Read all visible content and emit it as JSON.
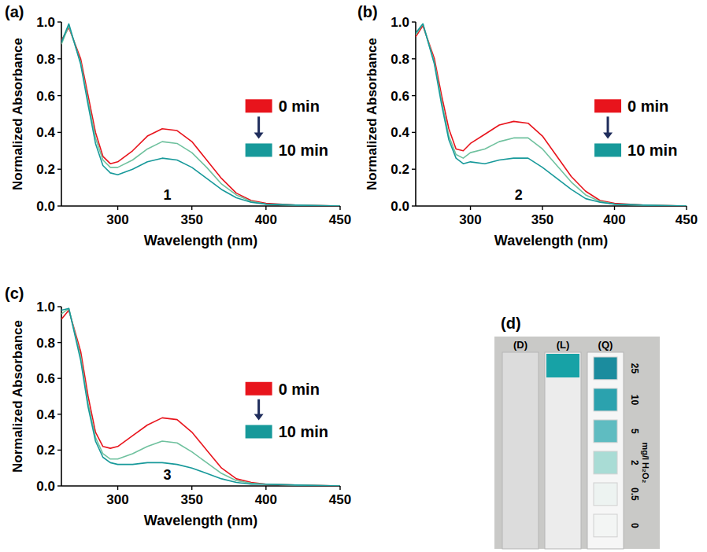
{
  "chart_data": [
    {
      "type": "line",
      "panel": "(a)",
      "annotation": "1",
      "x_label": "Wavelength (nm)",
      "y_label": "Normalized Absorbance",
      "xlim": [
        262,
        450
      ],
      "xticks": [
        300,
        350,
        400,
        450
      ],
      "ylim": [
        0,
        1.0
      ],
      "yticks": [
        {
          "value": 0,
          "label": "0.0"
        },
        {
          "value": 0.2,
          "label": "0.2"
        },
        {
          "value": 0.4,
          "label": "0.4"
        },
        {
          "value": 0.6,
          "label": "0.6"
        },
        {
          "value": 0.8,
          "label": "0.8"
        },
        {
          "value": 1.0,
          "label": "1.0"
        }
      ],
      "grid": false,
      "legend": "right",
      "x": [
        262,
        267,
        275,
        280,
        285,
        290,
        295,
        300,
        310,
        320,
        330,
        340,
        350,
        360,
        370,
        380,
        390,
        400,
        420,
        450
      ],
      "series": [
        {
          "name": "0 min",
          "color": "#e8141c",
          "values": [
            0.9,
            0.97,
            0.8,
            0.6,
            0.4,
            0.27,
            0.23,
            0.24,
            0.3,
            0.38,
            0.42,
            0.41,
            0.35,
            0.25,
            0.15,
            0.07,
            0.03,
            0.015,
            0.005,
            0
          ]
        },
        {
          "color": "#6fc19e",
          "values": [
            0.88,
            0.98,
            0.78,
            0.57,
            0.37,
            0.25,
            0.21,
            0.21,
            0.25,
            0.31,
            0.35,
            0.34,
            0.29,
            0.21,
            0.12,
            0.06,
            0.025,
            0.01,
            0.005,
            0
          ]
        },
        {
          "name": "10 min",
          "color": "#17999a",
          "values": [
            0.89,
            0.99,
            0.77,
            0.55,
            0.34,
            0.22,
            0.18,
            0.17,
            0.2,
            0.24,
            0.26,
            0.25,
            0.21,
            0.15,
            0.09,
            0.045,
            0.02,
            0.01,
            0.005,
            0
          ]
        }
      ]
    },
    {
      "type": "line",
      "panel": "(b)",
      "annotation": "2",
      "x_label": "Wavelength (nm)",
      "y_label": "Normalized Absorbance",
      "xlim": [
        262,
        450
      ],
      "xticks": [
        300,
        350,
        400,
        450
      ],
      "ylim": [
        0,
        1.0
      ],
      "yticks": [
        {
          "value": 0,
          "label": "0.0"
        },
        {
          "value": 0.2,
          "label": "0.2"
        },
        {
          "value": 0.4,
          "label": "0.4"
        },
        {
          "value": 0.6,
          "label": "0.6"
        },
        {
          "value": 0.8,
          "label": "0.8"
        },
        {
          "value": 1.0,
          "label": "1.0"
        }
      ],
      "grid": false,
      "legend": "right",
      "x": [
        262,
        267,
        275,
        280,
        285,
        290,
        295,
        300,
        310,
        320,
        330,
        340,
        350,
        360,
        370,
        380,
        390,
        400,
        420,
        450
      ],
      "series": [
        {
          "name": "0 min",
          "color": "#e8141c",
          "values": [
            0.92,
            0.98,
            0.8,
            0.6,
            0.42,
            0.31,
            0.3,
            0.34,
            0.39,
            0.44,
            0.46,
            0.45,
            0.38,
            0.27,
            0.16,
            0.08,
            0.03,
            0.015,
            0.005,
            0
          ]
        },
        {
          "color": "#6fc19e",
          "values": [
            0.93,
            0.99,
            0.78,
            0.57,
            0.38,
            0.28,
            0.26,
            0.29,
            0.31,
            0.35,
            0.37,
            0.37,
            0.31,
            0.22,
            0.13,
            0.06,
            0.025,
            0.01,
            0.005,
            0
          ]
        },
        {
          "name": "10 min",
          "color": "#17999a",
          "values": [
            0.94,
            0.99,
            0.77,
            0.55,
            0.36,
            0.26,
            0.23,
            0.24,
            0.23,
            0.25,
            0.26,
            0.26,
            0.21,
            0.15,
            0.09,
            0.04,
            0.02,
            0.01,
            0.005,
            0
          ]
        }
      ]
    },
    {
      "type": "line",
      "panel": "(c)",
      "annotation": "3",
      "x_label": "Wavelength (nm)",
      "y_label": "Normalized Absorbance",
      "xlim": [
        262,
        450
      ],
      "xticks": [
        300,
        350,
        400,
        450
      ],
      "ylim": [
        0,
        1.0
      ],
      "yticks": [
        {
          "value": 0,
          "label": "0.0"
        },
        {
          "value": 0.2,
          "label": "0.2"
        },
        {
          "value": 0.4,
          "label": "0.4"
        },
        {
          "value": 0.6,
          "label": "0.6"
        },
        {
          "value": 0.8,
          "label": "0.8"
        },
        {
          "value": 1.0,
          "label": "1.0"
        }
      ],
      "grid": false,
      "legend": "right",
      "x": [
        262,
        267,
        275,
        280,
        285,
        290,
        295,
        300,
        310,
        320,
        330,
        340,
        350,
        360,
        370,
        380,
        390,
        400,
        420,
        450
      ],
      "series": [
        {
          "name": "0 min",
          "color": "#e8141c",
          "values": [
            0.93,
            0.98,
            0.75,
            0.5,
            0.3,
            0.22,
            0.21,
            0.22,
            0.28,
            0.34,
            0.38,
            0.37,
            0.3,
            0.2,
            0.1,
            0.04,
            0.02,
            0.01,
            0.005,
            0
          ]
        },
        {
          "color": "#6fc19e",
          "values": [
            0.96,
            0.99,
            0.72,
            0.46,
            0.27,
            0.18,
            0.15,
            0.15,
            0.18,
            0.22,
            0.25,
            0.24,
            0.19,
            0.13,
            0.07,
            0.03,
            0.015,
            0.01,
            0.005,
            0
          ]
        },
        {
          "name": "10 min",
          "color": "#17999a",
          "values": [
            0.98,
            0.99,
            0.7,
            0.44,
            0.25,
            0.16,
            0.13,
            0.12,
            0.12,
            0.13,
            0.13,
            0.12,
            0.1,
            0.07,
            0.04,
            0.02,
            0.01,
            0.01,
            0.005,
            0
          ]
        }
      ]
    },
    {
      "type": "image",
      "panel": "(d)",
      "strips": [
        {
          "name": "(D)"
        },
        {
          "name": "(L)",
          "color": "#17a2a6"
        },
        {
          "name": "(Q)"
        }
      ],
      "values": [
        25,
        10,
        5,
        2,
        0.5,
        0
      ],
      "colors": [
        "#1b8c9e",
        "#2ba2ae",
        "#5fbcc1",
        "#a9dcd5",
        "#edf3f1",
        "#f3f5f4"
      ],
      "unit": "mg/l H₂O₂"
    }
  ]
}
